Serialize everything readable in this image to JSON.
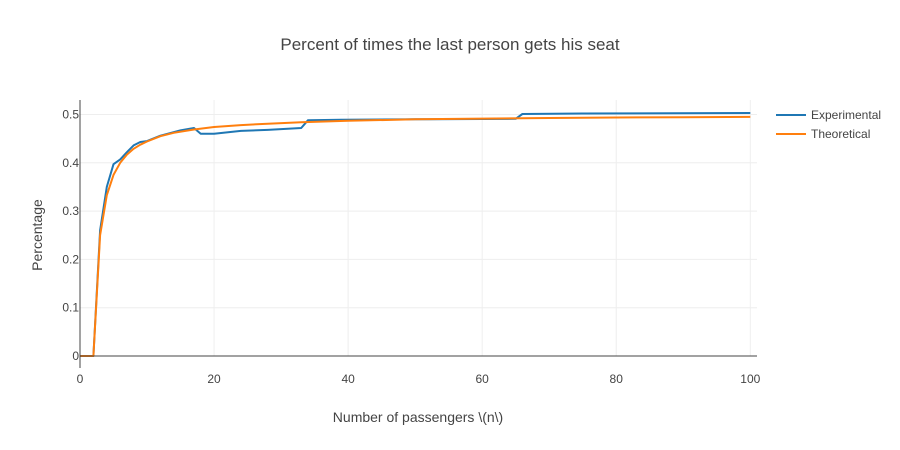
{
  "chart_data": {
    "type": "line",
    "title": "Percent of times the last person gets his seat",
    "xlabel": "Number of passengers \\(n\\)",
    "ylabel": "Percentage",
    "xlim": [
      0,
      101
    ],
    "ylim": [
      0,
      0.53
    ],
    "x_ticks": [
      0,
      20,
      40,
      60,
      80,
      100
    ],
    "x_tick_labels": [
      "0",
      "20",
      "40",
      "60",
      "80",
      "100"
    ],
    "y_ticks": [
      0,
      0.1,
      0.2,
      0.3,
      0.4,
      0.5
    ],
    "y_tick_labels": [
      "0",
      "0.1",
      "0.2",
      "0.3",
      "0.4",
      "0.5"
    ],
    "grid": true,
    "legend_position": "top-right",
    "series": [
      {
        "name": "Experimental",
        "color": "#1f77b4",
        "x": [
          0,
          2,
          3,
          4,
          5,
          6,
          7,
          8,
          9,
          10,
          12,
          15,
          17,
          18,
          20,
          24,
          28,
          33,
          34,
          39,
          50,
          52,
          65,
          66,
          75,
          100
        ],
        "y": [
          0,
          0,
          0.26,
          0.35,
          0.397,
          0.407,
          0.422,
          0.436,
          0.443,
          0.445,
          0.456,
          0.467,
          0.472,
          0.46,
          0.46,
          0.466,
          0.468,
          0.472,
          0.488,
          0.489,
          0.49,
          0.49,
          0.491,
          0.501,
          0.502,
          0.503
        ]
      },
      {
        "name": "Theoretical",
        "color": "#ff7f0e",
        "x": [
          0,
          2,
          3,
          4,
          5,
          6,
          7,
          8,
          9,
          10,
          12,
          14,
          17,
          20,
          24,
          28,
          33,
          40,
          50,
          60,
          70,
          80,
          90,
          100
        ],
        "y": [
          0,
          0,
          0.25,
          0.333,
          0.375,
          0.4,
          0.417,
          0.429,
          0.4375,
          0.444,
          0.455,
          0.462,
          0.469,
          0.474,
          0.478,
          0.481,
          0.484,
          0.487,
          0.49,
          0.4915,
          0.4928,
          0.4937,
          0.4944,
          0.495
        ]
      }
    ]
  }
}
